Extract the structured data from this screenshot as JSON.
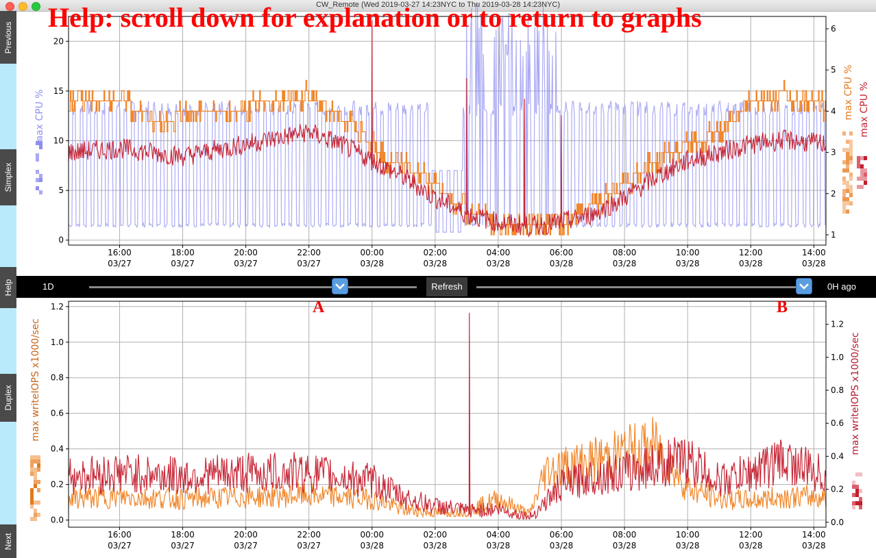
{
  "window": {
    "title": "CW_Remote (Wed 2019-03-27 14:23NYC to Thu 2019-03-28 14:23NYC)",
    "traffic_lights": {
      "close": "#fe5f57",
      "minimize": "#febc2e",
      "zoom": "#28c840"
    }
  },
  "help_banner": "Help: scroll down for explanation or to return to graphs",
  "sidebar": {
    "buttons": [
      {
        "label": "Previous"
      },
      {
        "label": "Simplex"
      },
      {
        "label": "Help"
      },
      {
        "label": "Duplex"
      },
      {
        "label": "Next"
      }
    ]
  },
  "controls": {
    "range_label": "1D",
    "refresh_label": "Refresh",
    "ago_label": "0H ago",
    "marker_a": "A",
    "marker_b": "B",
    "handle_icon": "chevron-down-icon"
  },
  "x_axis": {
    "ticks": [
      {
        "time": "16:00",
        "date": "03/27"
      },
      {
        "time": "18:00",
        "date": "03/27"
      },
      {
        "time": "20:00",
        "date": "03/27"
      },
      {
        "time": "22:00",
        "date": "03/27"
      },
      {
        "time": "00:00",
        "date": "03/28"
      },
      {
        "time": "02:00",
        "date": "03/28"
      },
      {
        "time": "04:00",
        "date": "03/28"
      },
      {
        "time": "06:00",
        "date": "03/28"
      },
      {
        "time": "08:00",
        "date": "03/28"
      },
      {
        "time": "10:00",
        "date": "03/28"
      },
      {
        "time": "12:00",
        "date": "03/28"
      },
      {
        "time": "14:00",
        "date": "03/28"
      }
    ]
  },
  "chart_data": [
    {
      "type": "line",
      "x_range": [
        "2019-03-27 14:23",
        "2019-03-28 14:23"
      ],
      "xlabel": "",
      "y_left": {
        "label": "max CPU %",
        "ticks": [
          0,
          5,
          10,
          15,
          20
        ],
        "lim": [
          -0.5,
          22.5
        ]
      },
      "y_right": {
        "label_top": "max CPU %",
        "label_bottom": "max CPU %",
        "ticks": [
          1,
          2,
          3,
          4,
          5,
          6
        ],
        "lim": [
          0.75,
          6.3
        ]
      },
      "grid": true,
      "series": [
        {
          "color": "#8f8ff0",
          "axis": "left",
          "shape": "periodic oscillation between about 1 and 14, spikes to ~25 near 04:30",
          "x": [
            "14:23",
            "16:00",
            "18:00",
            "20:00",
            "22:00",
            "00:00",
            "02:00",
            "03:00",
            "04:00",
            "05:00",
            "06:00",
            "08:00",
            "10:00",
            "12:00",
            "14:23"
          ],
          "y": [
            8,
            7.5,
            7,
            7.5,
            7.5,
            7.5,
            7,
            4,
            7,
            7,
            7,
            7,
            7.5,
            8,
            7.5
          ]
        },
        {
          "color": "#f07f1e",
          "axis": "right",
          "shape": "stepped",
          "x": [
            "14:23",
            "16:00",
            "17:00",
            "20:00",
            "22:00",
            "23:30",
            "00:30",
            "01:30",
            "02:00",
            "03:00",
            "04:00",
            "06:00",
            "07:00",
            "08:00",
            "09:00",
            "10:00",
            "11:00",
            "12:00",
            "13:00",
            "14:23"
          ],
          "y": [
            4.2,
            4.3,
            3.8,
            4.1,
            4.4,
            3.6,
            2.8,
            2.5,
            2.2,
            1.6,
            1.3,
            1.2,
            1.7,
            2.2,
            2.8,
            3.2,
            3.5,
            4.2,
            4.4,
            4.1
          ]
        },
        {
          "color": "#c41e2e",
          "axis": "right",
          "shape": "noisy",
          "x": [
            "14:23",
            "16:00",
            "18:00",
            "20:00",
            "22:00",
            "23:00",
            "00:00",
            "01:00",
            "02:00",
            "03:00",
            "04:00",
            "05:00",
            "06:00",
            "07:00",
            "08:00",
            "09:00",
            "10:00",
            "11:00",
            "12:00",
            "13:00",
            "14:23"
          ],
          "y": [
            3.0,
            3.1,
            2.9,
            3.2,
            3.5,
            3.2,
            2.8,
            2.4,
            1.9,
            1.5,
            1.3,
            1.2,
            1.3,
            1.5,
            1.9,
            2.4,
            2.8,
            3.0,
            3.2,
            3.3,
            3.2
          ],
          "spikes": [
            {
              "x": "00:00",
              "y": 6.2
            },
            {
              "x": "03:00",
              "y": 4.8
            },
            {
              "x": "04:50",
              "y": 4.3
            },
            {
              "x": "06:00",
              "y": 3.9
            }
          ]
        }
      ]
    },
    {
      "type": "line",
      "x_range": [
        "2019-03-27 14:23",
        "2019-03-28 14:23"
      ],
      "xlabel": "",
      "y_left": {
        "label": "max writeIOPS x1000/sec",
        "ticks": [
          0.0,
          0.2,
          0.4,
          0.6,
          0.8,
          1.0,
          1.2
        ],
        "lim": [
          -0.04,
          1.23
        ]
      },
      "y_right": {
        "label": "max writeIOPS x1000/sec",
        "ticks": [
          0.0,
          0.2,
          0.4,
          0.6,
          0.8,
          1.0,
          1.2
        ],
        "lim": [
          -0.03,
          1.34
        ]
      },
      "grid": true,
      "series": [
        {
          "color": "#f07f1e",
          "axis": "left",
          "shape": "noisy",
          "x": [
            "14:23",
            "16:00",
            "18:00",
            "20:00",
            "22:00",
            "00:00",
            "01:00",
            "02:00",
            "03:00",
            "04:00",
            "05:00",
            "05:30",
            "07:00",
            "08:00",
            "09:00",
            "10:00",
            "11:00",
            "12:00",
            "13:00",
            "14:23"
          ],
          "y": [
            0.12,
            0.13,
            0.12,
            0.13,
            0.14,
            0.12,
            0.06,
            0.04,
            0.05,
            0.12,
            0.03,
            0.28,
            0.33,
            0.38,
            0.42,
            0.18,
            0.12,
            0.11,
            0.13,
            0.13
          ]
        },
        {
          "color": "#c41e2e",
          "axis": "right",
          "shape": "noisy",
          "x": [
            "14:23",
            "16:00",
            "18:00",
            "20:00",
            "22:00",
            "00:00",
            "01:00",
            "02:00",
            "03:00",
            "04:00",
            "05:00",
            "06:00",
            "07:00",
            "08:00",
            "09:00",
            "10:00",
            "11:00",
            "12:00",
            "13:00",
            "14:23"
          ],
          "y": [
            0.28,
            0.3,
            0.28,
            0.3,
            0.3,
            0.25,
            0.15,
            0.1,
            0.07,
            0.08,
            0.03,
            0.22,
            0.28,
            0.3,
            0.35,
            0.38,
            0.25,
            0.3,
            0.38,
            0.28
          ],
          "spikes": [
            {
              "x": "03:05",
              "y": 1.27
            }
          ]
        }
      ]
    }
  ]
}
